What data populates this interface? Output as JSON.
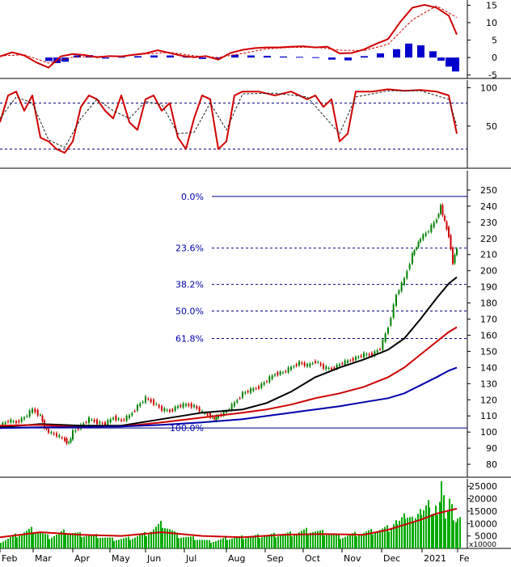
{
  "chart_data": [
    {
      "panel": "MACD",
      "type": "line",
      "y_ticks": [
        15,
        10,
        5,
        0,
        -5
      ],
      "y_tick_labels": [
        "15",
        "10",
        "5",
        "0",
        "-5"
      ],
      "ylim": [
        -6,
        16.5
      ],
      "colors": {
        "macd": "#d00000",
        "signal": "#d00000",
        "histogram": "#0000cc"
      },
      "series": [
        {
          "name": "",
          "role": "macd",
          "x": [
            0,
            15,
            30,
            45,
            60,
            75,
            90,
            105,
            120,
            135,
            150,
            165,
            180,
            195,
            210,
            225,
            240,
            255,
            270,
            285,
            300,
            315,
            330,
            345,
            360,
            375,
            390,
            405,
            420,
            435,
            450,
            465,
            480,
            495,
            510,
            525,
            540,
            555,
            565
          ],
          "values": [
            0.3,
            1.5,
            0.6,
            -1.4,
            -2.9,
            0.3,
            1,
            0.7,
            0.1,
            0.4,
            0.3,
            0.8,
            1.2,
            2.1,
            1.3,
            0.5,
            0.1,
            0.4,
            -0.6,
            1.3,
            2.2,
            2.7,
            2.9,
            2.9,
            3.1,
            3.2,
            2.9,
            3.1,
            1.2,
            1.3,
            2.3,
            3.9,
            5.3,
            10.2,
            14.3,
            15.1,
            14.3,
            12.0,
            6.6
          ]
        },
        {
          "name": "",
          "role": "signal",
          "x": [
            0,
            30,
            60,
            90,
            120,
            150,
            180,
            210,
            240,
            270,
            300,
            330,
            360,
            390,
            420,
            450,
            480,
            510,
            540,
            565
          ],
          "values": [
            0.5,
            0.8,
            -1.6,
            0.1,
            0.3,
            0.4,
            1,
            1.5,
            0.5,
            0,
            1.2,
            2.5,
            2.9,
            3,
            2.1,
            2,
            3.8,
            10.8,
            14.8,
            11.5
          ]
        },
        {
          "name": "",
          "role": "histogram",
          "x": [
            60,
            70,
            80,
            95,
            110,
            130,
            150,
            170,
            190,
            210,
            230,
            250,
            270,
            290,
            310,
            330,
            350,
            370,
            390,
            410,
            430,
            450,
            470,
            490,
            505,
            520,
            535,
            545,
            555,
            563
          ],
          "values": [
            -1.0,
            -1.6,
            -1.2,
            0.6,
            0.7,
            -0.3,
            0.2,
            0.4,
            0.6,
            0.6,
            0.2,
            -0.4,
            -0.3,
            0.8,
            0.6,
            0.5,
            0.3,
            0.2,
            0.1,
            -0.6,
            -0.8,
            0.4,
            1.2,
            2.4,
            4.0,
            3.5,
            1.8,
            -0.9,
            -2.6,
            -4.0
          ]
        }
      ]
    },
    {
      "panel": "Stochastic",
      "type": "line",
      "y_ticks": [
        100,
        50
      ],
      "y_tick_labels": [
        "100",
        "50"
      ],
      "reference_lines": [
        80,
        20
      ],
      "ylim": [
        -5,
        110
      ],
      "series": [
        {
          "name": "",
          "role": "k",
          "x": [
            0,
            10,
            20,
            30,
            40,
            50,
            60,
            70,
            80,
            90,
            100,
            110,
            120,
            130,
            140,
            150,
            160,
            170,
            180,
            190,
            200,
            210,
            220,
            230,
            240,
            250,
            260,
            270,
            280,
            290,
            300,
            320,
            340,
            360,
            380,
            390,
            400,
            410,
            420,
            430,
            440,
            460,
            480,
            500,
            520,
            540,
            555,
            565
          ],
          "values": [
            55,
            90,
            95,
            70,
            90,
            35,
            30,
            20,
            15,
            30,
            75,
            90,
            85,
            70,
            60,
            90,
            55,
            45,
            85,
            90,
            70,
            80,
            35,
            20,
            60,
            90,
            85,
            20,
            30,
            90,
            95,
            95,
            90,
            95,
            85,
            90,
            75,
            85,
            30,
            40,
            95,
            95,
            98,
            96,
            97,
            95,
            90,
            40
          ]
        },
        {
          "name": "",
          "role": "d",
          "x": [
            0,
            20,
            40,
            60,
            80,
            100,
            120,
            140,
            160,
            180,
            200,
            220,
            240,
            260,
            280,
            300,
            340,
            380,
            420,
            440,
            480,
            520,
            555,
            565
          ],
          "values": [
            60,
            88,
            80,
            32,
            22,
            60,
            85,
            70,
            60,
            82,
            78,
            40,
            42,
            80,
            45,
            92,
            93,
            88,
            40,
            88,
            96,
            96,
            85,
            50
          ]
        }
      ]
    },
    {
      "panel": "Price",
      "type": "line",
      "y_ticks": [
        250,
        240,
        230,
        220,
        210,
        200,
        190,
        180,
        170,
        160,
        150,
        140,
        130,
        120,
        110,
        100,
        90,
        80
      ],
      "y_tick_labels": [
        "250",
        "240",
        "230",
        "220",
        "210",
        "200",
        "190",
        "180",
        "170",
        "160",
        "150",
        "140",
        "130",
        "120",
        "110",
        "100",
        "90",
        "80"
      ],
      "ylim": [
        72,
        262
      ],
      "x_ticks": [
        "Feb",
        "Mar",
        "Apr",
        "May",
        "Jun",
        "Jul",
        "Aug",
        "Sep",
        "Oct",
        "Nov",
        "Dec",
        "2021",
        "Fe"
      ],
      "fibonacci": [
        {
          "label": "0.0%",
          "value": 246
        },
        {
          "label": "23.6%",
          "value": 214
        },
        {
          "label": "38.2%",
          "value": 191.5
        },
        {
          "label": "50.0%",
          "value": 175
        },
        {
          "label": "61.8%",
          "value": 158
        },
        {
          "label": "100.0%",
          "value": 102.5
        }
      ],
      "colors": {
        "up": "#008000",
        "down": "#cc0000",
        "ma_short": "#000000",
        "ma_mid": "#cc0000",
        "ma_long": "#0000aa",
        "fib": "#000080"
      },
      "series": [
        {
          "name": "",
          "role": "close",
          "x": [
            0,
            10,
            20,
            30,
            40,
            50,
            55,
            60,
            70,
            80,
            85,
            90,
            100,
            110,
            120,
            130,
            140,
            150,
            160,
            170,
            180,
            190,
            200,
            210,
            220,
            230,
            240,
            250,
            260,
            265,
            270,
            280,
            290,
            300,
            310,
            320,
            330,
            340,
            350,
            360,
            370,
            380,
            390,
            400,
            410,
            420,
            430,
            440,
            450,
            460,
            470,
            480,
            490,
            500,
            510,
            515,
            520,
            530,
            540,
            545,
            550,
            555,
            560,
            565
          ],
          "values": [
            104,
            107,
            106,
            109,
            114,
            110,
            103,
            100,
            98,
            95,
            93,
            100,
            104,
            108,
            106,
            105,
            109,
            107,
            110,
            116,
            121,
            118,
            114,
            113,
            116,
            117,
            116,
            112,
            110,
            108,
            110,
            113,
            118,
            124,
            126,
            128,
            132,
            136,
            137,
            140,
            143,
            141,
            144,
            140,
            139,
            142,
            144,
            146,
            148,
            148,
            152,
            165,
            185,
            195,
            210,
            215,
            220,
            225,
            232,
            240,
            230,
            222,
            205,
            214
          ]
        },
        {
          "name": "",
          "role": "ma_short",
          "x": [
            0,
            50,
            100,
            150,
            200,
            250,
            300,
            330,
            360,
            390,
            420,
            450,
            480,
            500,
            520,
            540,
            555,
            565
          ],
          "values": [
            103,
            105,
            104,
            104,
            108,
            112,
            114,
            118,
            125,
            134,
            140,
            145,
            151,
            158,
            170,
            183,
            192,
            196
          ]
        },
        {
          "name": "",
          "role": "ma_mid",
          "x": [
            0,
            50,
            100,
            150,
            200,
            250,
            300,
            330,
            360,
            390,
            420,
            450,
            480,
            500,
            520,
            540,
            555,
            565
          ],
          "values": [
            104,
            104.5,
            103,
            103.5,
            106,
            109,
            112,
            114,
            117,
            121,
            124,
            128,
            134,
            140,
            148,
            156,
            162,
            165
          ]
        },
        {
          "name": "",
          "role": "ma_long",
          "x": [
            0,
            50,
            100,
            150,
            200,
            250,
            300,
            330,
            360,
            390,
            420,
            450,
            480,
            500,
            520,
            540,
            555,
            565
          ],
          "values": [
            102.5,
            103,
            103,
            103.5,
            104.5,
            106,
            108,
            110,
            112,
            114,
            116,
            118.5,
            121,
            124,
            129,
            134,
            138,
            140
          ]
        }
      ]
    },
    {
      "panel": "Volume",
      "type": "bar",
      "y_ticks": [
        25000,
        20000,
        15000,
        10000,
        5000
      ],
      "y_tick_labels": [
        "25000",
        "20000",
        "15000",
        "10000",
        "5000"
      ],
      "ylim": [
        0,
        28000
      ],
      "unit_label": "x10000",
      "colors": {
        "bars": "#00aa00",
        "ma": "#cc0000"
      },
      "series": [
        {
          "name": "",
          "role": "volume",
          "x": [
            0,
            20,
            40,
            60,
            80,
            100,
            120,
            140,
            160,
            180,
            200,
            220,
            240,
            260,
            280,
            300,
            320,
            340,
            360,
            380,
            400,
            420,
            440,
            460,
            480,
            490,
            500,
            510,
            520,
            530,
            535,
            540,
            545,
            550,
            555,
            560,
            565
          ],
          "values": [
            3000,
            6000,
            8500,
            5000,
            7500,
            6000,
            5500,
            4000,
            4500,
            6500,
            11000,
            5500,
            4500,
            3000,
            4500,
            5000,
            5500,
            6000,
            6500,
            8000,
            7000,
            5000,
            6500,
            7500,
            9000,
            13000,
            16000,
            14000,
            18000,
            22000,
            14000,
            18000,
            27000,
            16000,
            20000,
            15000,
            12000
          ]
        },
        {
          "name": "",
          "role": "volume_ma",
          "x": [
            0,
            50,
            100,
            150,
            200,
            250,
            300,
            350,
            400,
            450,
            480,
            500,
            520,
            540,
            565
          ],
          "values": [
            4500,
            6500,
            5500,
            5000,
            6500,
            5000,
            4500,
            5500,
            5800,
            5500,
            7500,
            9500,
            11500,
            14000,
            16000
          ]
        }
      ]
    }
  ]
}
